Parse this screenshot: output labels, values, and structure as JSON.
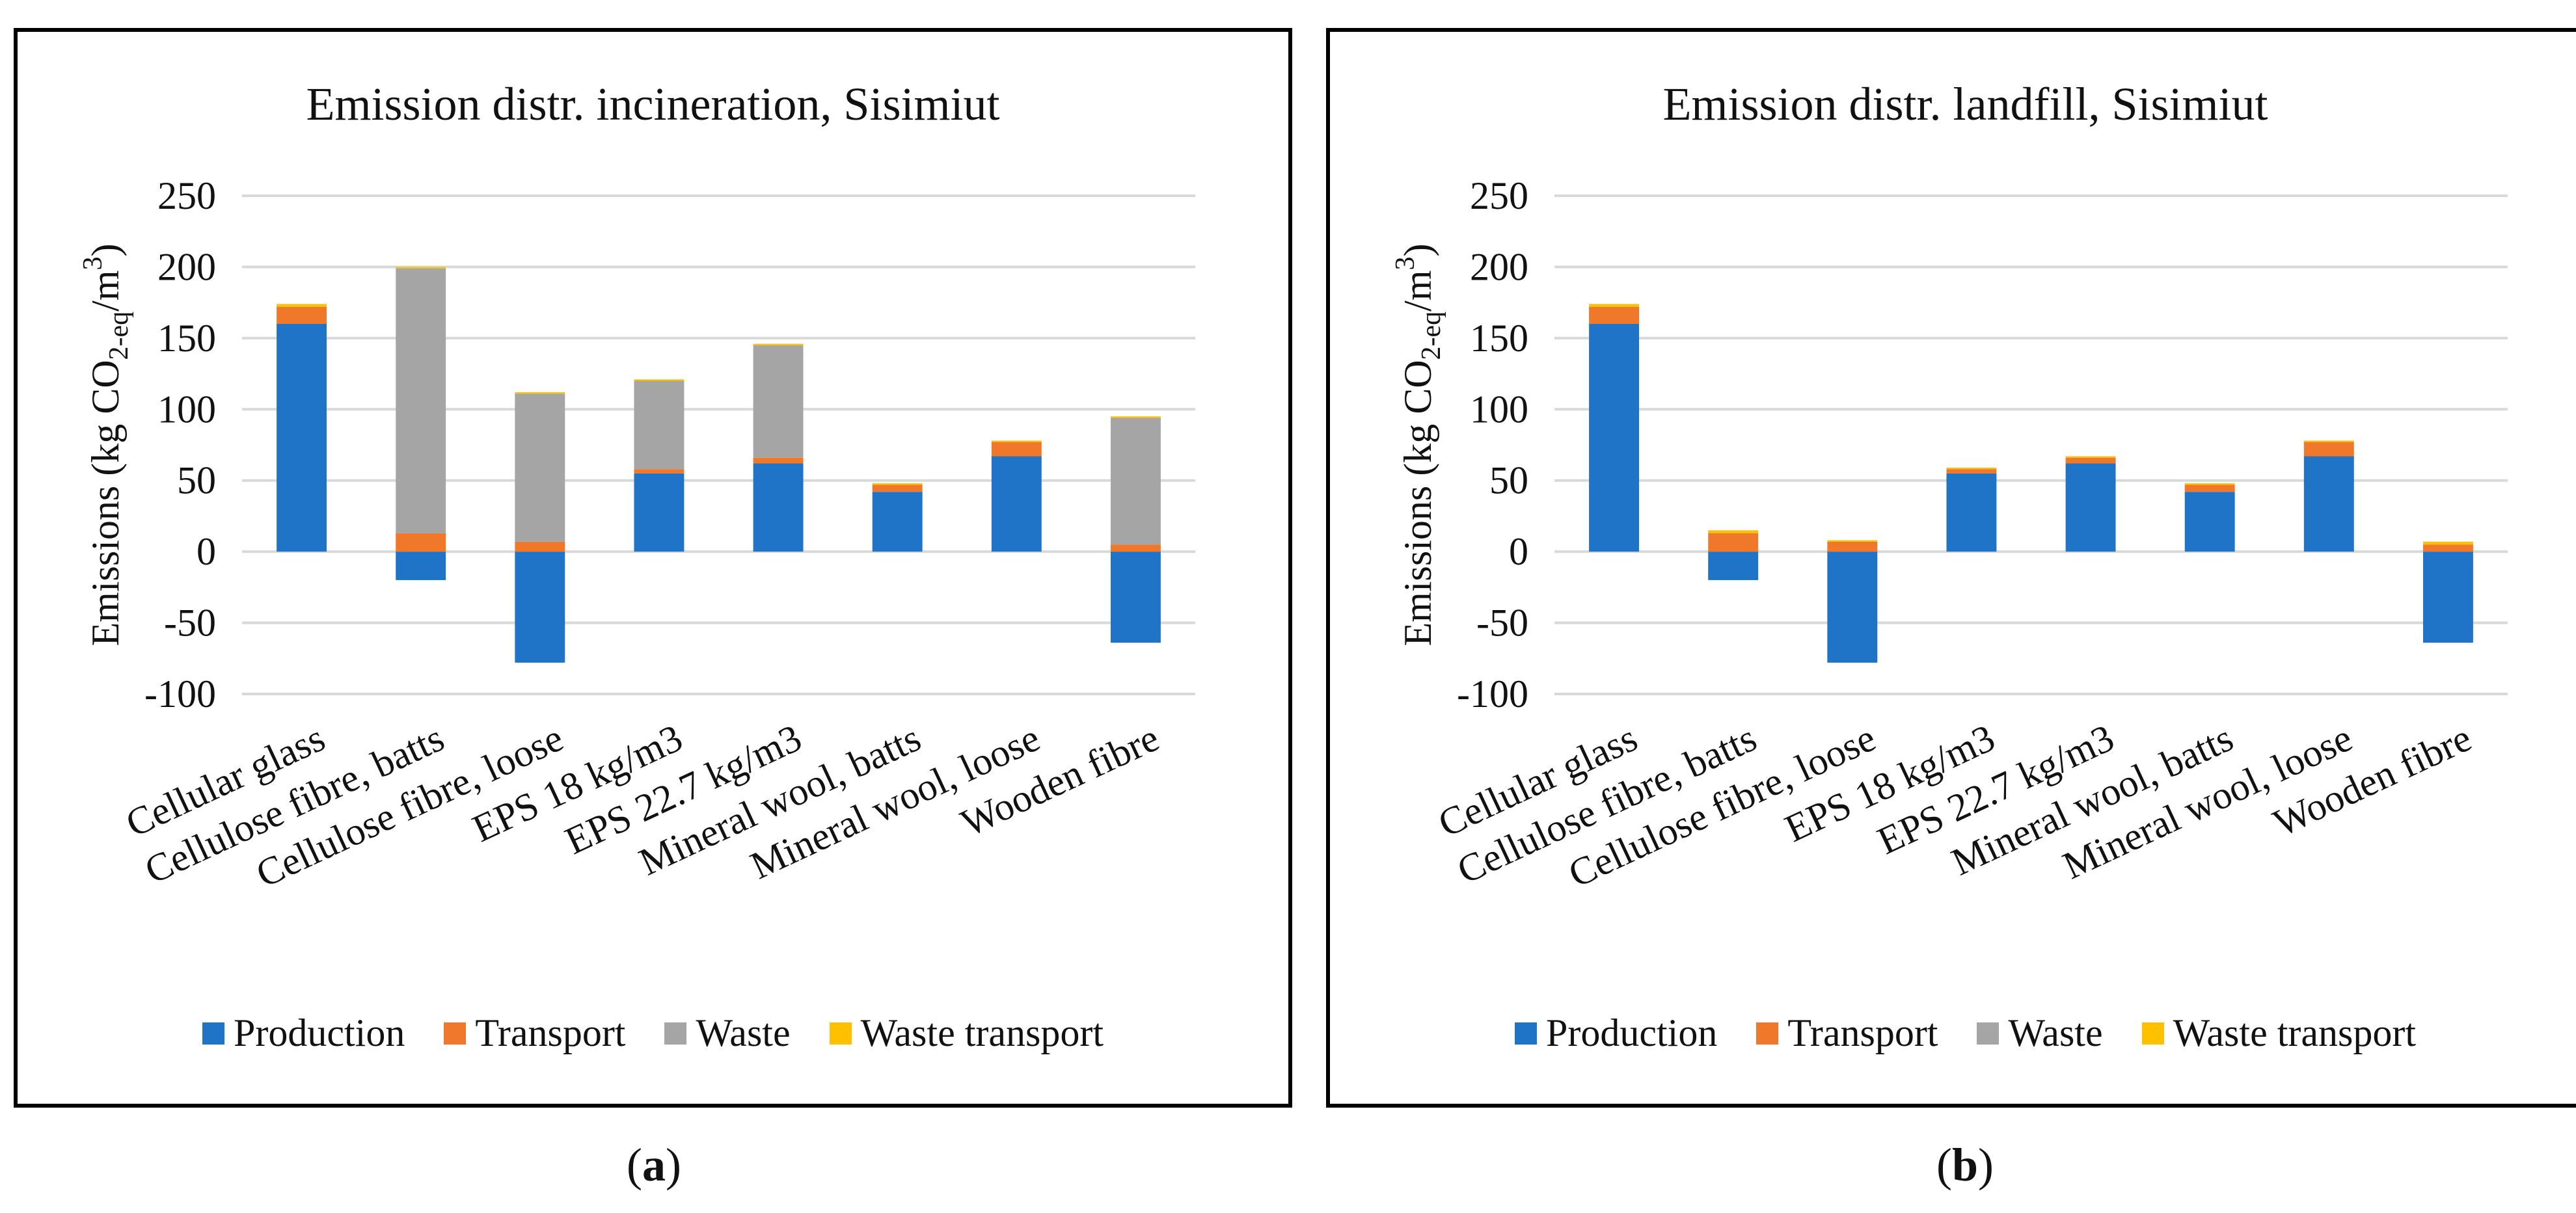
{
  "chart_data": [
    {
      "type": "bar",
      "stacked": true,
      "title": "Emission distr. incineration, Sisimiut",
      "ylabel": "Emissions (kg CO2-eq/m3)",
      "ylabel_parts": {
        "prefix": "Emissions (kg CO",
        "sub": "2-eq",
        "mid": "/m",
        "sup": "3",
        "suffix": ")"
      },
      "ylim": [
        -100,
        250
      ],
      "yticks": [
        -100,
        -50,
        0,
        50,
        100,
        150,
        200,
        250
      ],
      "grid": true,
      "legend_position": "bottom",
      "categories": [
        "Cellular glass",
        "Cellulose fibre, batts",
        "Cellulose fibre, loose",
        "EPS 18 kg/m3",
        "EPS 22.7 kg/m3",
        "Mineral wool, batts",
        "Mineral wool, loose",
        "Wooden fibre"
      ],
      "series": [
        {
          "name": "Production",
          "color": "#1f74c8",
          "values": [
            160,
            -20,
            -78,
            55,
            62,
            42,
            67,
            -64
          ]
        },
        {
          "name": "Transport",
          "color": "#f0782a",
          "values": [
            12,
            13,
            7,
            3,
            4,
            5,
            10,
            5
          ]
        },
        {
          "name": "Waste",
          "color": "#a5a5a5",
          "values": [
            0,
            186,
            104,
            62,
            79,
            0,
            0,
            89
          ]
        },
        {
          "name": "Waste transport",
          "color": "#ffc000",
          "values": [
            2,
            1,
            1,
            1,
            1,
            1,
            1,
            1
          ]
        }
      ]
    },
    {
      "type": "bar",
      "stacked": true,
      "title": "Emission distr. landfill, Sisimiut",
      "ylabel": "Emissions (kg CO2-eq/m3)",
      "ylabel_parts": {
        "prefix": "Emissions (kg CO",
        "sub": "2-eq",
        "mid": "/m",
        "sup": "3",
        "suffix": ")"
      },
      "ylim": [
        -100,
        250
      ],
      "yticks": [
        -100,
        -50,
        0,
        50,
        100,
        150,
        200,
        250
      ],
      "grid": true,
      "legend_position": "bottom",
      "categories": [
        "Cellular glass",
        "Cellulose fibre, batts",
        "Cellulose fibre, loose",
        "EPS 18 kg/m3",
        "EPS 22.7 kg/m3",
        "Mineral wool, batts",
        "Mineral wool, loose",
        "Wooden fibre"
      ],
      "series": [
        {
          "name": "Production",
          "color": "#1f74c8",
          "values": [
            160,
            -20,
            -78,
            55,
            62,
            42,
            67,
            -64
          ]
        },
        {
          "name": "Transport",
          "color": "#f0782a",
          "values": [
            12,
            13,
            7,
            3,
            4,
            5,
            10,
            5
          ]
        },
        {
          "name": "Waste",
          "color": "#a5a5a5",
          "values": [
            0,
            0,
            0,
            0,
            0,
            0,
            0,
            0
          ]
        },
        {
          "name": "Waste transport",
          "color": "#ffc000",
          "values": [
            2,
            2,
            1,
            1,
            1,
            1,
            1,
            2
          ]
        }
      ]
    }
  ],
  "captions": {
    "a": "a",
    "b": "b"
  }
}
